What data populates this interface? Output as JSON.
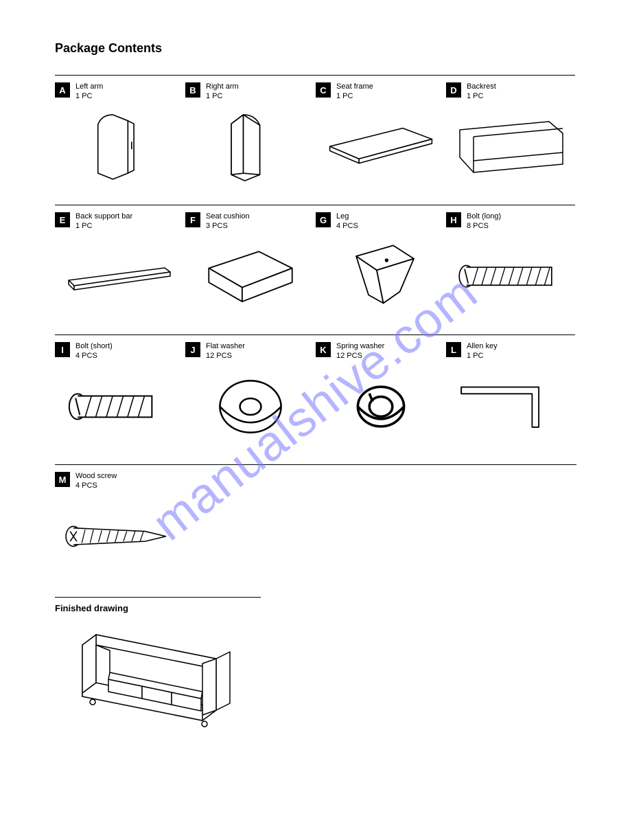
{
  "title": "Package Contents",
  "rows": [
    [
      {
        "badge": "A",
        "name": "Left arm",
        "qty": "1 PC",
        "icon": "left-arm"
      },
      {
        "badge": "B",
        "name": "Right arm",
        "qty": "1 PC",
        "icon": "right-arm"
      },
      {
        "badge": "C",
        "name": "Seat frame",
        "qty": "1 PC",
        "icon": "seat-frame"
      },
      {
        "badge": "D",
        "name": "Backrest",
        "qty": "1 PC",
        "icon": "backrest"
      }
    ],
    [
      {
        "badge": "E",
        "name": "Back support bar",
        "qty": "1 PC",
        "icon": "bar"
      },
      {
        "badge": "F",
        "name": "Seat cushion",
        "qty": "3 PCS",
        "icon": "cushion"
      },
      {
        "badge": "G",
        "name": "Leg",
        "qty": "4 PCS",
        "icon": "leg"
      },
      {
        "badge": "H",
        "name": "Bolt (long)",
        "qty": "8 PCS",
        "icon": "bolt-long"
      }
    ],
    [
      {
        "badge": "I",
        "name": "Bolt (short)",
        "qty": "4 PCS",
        "icon": "bolt-short"
      },
      {
        "badge": "J",
        "name": "Flat washer",
        "qty": "12 PCS",
        "icon": "washer-flat"
      },
      {
        "badge": "K",
        "name": "Spring washer",
        "qty": "12 PCS",
        "icon": "washer-spring"
      },
      {
        "badge": "L",
        "name": "Allen key",
        "qty": "1 PC",
        "icon": "allen-key"
      }
    ],
    [
      {
        "badge": "M",
        "name": "Wood screw",
        "qty": "4 PCS",
        "icon": "screw"
      }
    ]
  ],
  "finished": {
    "title": "Finished drawing"
  },
  "watermark": "manualshive.com",
  "colors": {
    "stroke": "#000000",
    "fill": "#ffffff",
    "wm": "rgba(120,120,255,0.55)"
  }
}
